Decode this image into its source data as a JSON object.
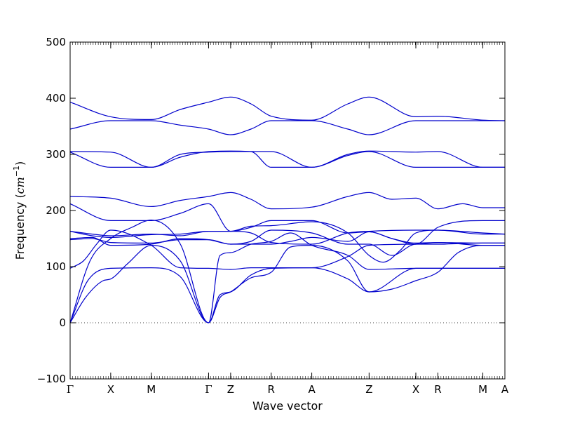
{
  "chart_data": {
    "type": "line",
    "title": "",
    "xlabel": "Wave vector",
    "ylabel_prefix": "Frequency (",
    "ylabel_unit_base": "cm",
    "ylabel_unit_exp": "−1",
    "ylabel_suffix": ")",
    "ylim": [
      -100,
      500
    ],
    "yticks": [
      -100,
      0,
      100,
      200,
      300,
      400,
      500
    ],
    "xlim": [
      0,
      9.86
    ],
    "grid": false,
    "legend": "none",
    "zero_line": "dotted",
    "line_color": "#0000cc",
    "kpoints": [
      {
        "label": "Γ",
        "x": 0.0
      },
      {
        "label": "X",
        "x": 0.92
      },
      {
        "label": "M",
        "x": 1.84
      },
      {
        "label": "Γ",
        "x": 3.14
      },
      {
        "label": "Z",
        "x": 3.64
      },
      {
        "label": "R",
        "x": 4.56
      },
      {
        "label": "A",
        "x": 5.48
      },
      {
        "label": "Z",
        "x": 6.78
      },
      {
        "label": "X",
        "x": 7.84
      },
      {
        "label": "R",
        "x": 8.34
      },
      {
        "label": "M",
        "x": 9.36
      },
      {
        "label": "A",
        "x": 9.86
      }
    ],
    "series": [
      {
        "values": [
          [
            0,
            0
          ],
          [
            0.35,
            45
          ],
          [
            0.75,
            75
          ],
          [
            0.92,
            78
          ],
          [
            1.3,
            105
          ],
          [
            1.84,
            138
          ],
          [
            2.5,
            110
          ],
          [
            3.14,
            0
          ],
          [
            3.4,
            45
          ],
          [
            3.64,
            55
          ],
          [
            4.1,
            80
          ],
          [
            4.56,
            90
          ],
          [
            5.0,
            135
          ],
          [
            5.48,
            138
          ],
          [
            6.3,
            110
          ],
          [
            6.78,
            55
          ],
          [
            7.3,
            60
          ],
          [
            7.84,
            75
          ],
          [
            8.34,
            90
          ],
          [
            8.8,
            125
          ],
          [
            9.36,
            138
          ],
          [
            9.86,
            138
          ]
        ]
      },
      {
        "values": [
          [
            0,
            0
          ],
          [
            0.4,
            75
          ],
          [
            0.92,
            97
          ],
          [
            1.84,
            98
          ],
          [
            2.5,
            82
          ],
          [
            3.14,
            0
          ],
          [
            3.4,
            50
          ],
          [
            3.64,
            55
          ],
          [
            4.1,
            85
          ],
          [
            4.56,
            97
          ],
          [
            5.48,
            98
          ],
          [
            6.3,
            78
          ],
          [
            6.78,
            55
          ],
          [
            7.84,
            97
          ],
          [
            9.86,
            97
          ]
        ]
      },
      {
        "values": [
          [
            0,
            0
          ],
          [
            0.45,
            110
          ],
          [
            0.92,
            150
          ],
          [
            1.4,
            170
          ],
          [
            1.84,
            183
          ],
          [
            2.5,
            140
          ],
          [
            3.14,
            0
          ],
          [
            3.4,
            120
          ],
          [
            3.64,
            125
          ],
          [
            4.1,
            140
          ],
          [
            4.56,
            145
          ],
          [
            5.0,
            160
          ],
          [
            5.48,
            138
          ],
          [
            6.3,
            120
          ],
          [
            6.78,
            95
          ],
          [
            7.84,
            97
          ],
          [
            9.86,
            97
          ]
        ]
      },
      {
        "values": [
          [
            0,
            97
          ],
          [
            0.3,
            110
          ],
          [
            0.6,
            140
          ],
          [
            0.92,
            165
          ],
          [
            1.84,
            138
          ],
          [
            2.5,
            98
          ],
          [
            3.14,
            97
          ],
          [
            3.64,
            95
          ],
          [
            4.1,
            98
          ],
          [
            4.56,
            98
          ],
          [
            5.48,
            98
          ],
          [
            6.3,
            118
          ],
          [
            6.78,
            138
          ],
          [
            7.84,
            140
          ],
          [
            8.34,
            143
          ],
          [
            9.36,
            138
          ],
          [
            9.86,
            138
          ]
        ]
      },
      {
        "values": [
          [
            0,
            148
          ],
          [
            0.5,
            150
          ],
          [
            0.92,
            143
          ],
          [
            1.84,
            142
          ],
          [
            2.5,
            148
          ],
          [
            3.14,
            148
          ],
          [
            3.64,
            140
          ],
          [
            4.1,
            140
          ],
          [
            4.56,
            140
          ],
          [
            5.0,
            145
          ],
          [
            5.48,
            152
          ],
          [
            6.3,
            145
          ],
          [
            6.78,
            162
          ],
          [
            7.3,
            150
          ],
          [
            7.84,
            142
          ],
          [
            8.34,
            143
          ],
          [
            9.36,
            142
          ],
          [
            9.86,
            142
          ]
        ]
      },
      {
        "values": [
          [
            0,
            150
          ],
          [
            0.5,
            152
          ],
          [
            0.92,
            138
          ],
          [
            1.84,
            140
          ],
          [
            2.5,
            150
          ],
          [
            3.14,
            148
          ],
          [
            3.64,
            140
          ],
          [
            4.1,
            145
          ],
          [
            4.56,
            165
          ],
          [
            5.48,
            160
          ],
          [
            6.3,
            140
          ],
          [
            6.78,
            140
          ],
          [
            7.3,
            120
          ],
          [
            7.84,
            140
          ],
          [
            8.34,
            140
          ],
          [
            9.36,
            142
          ],
          [
            9.86,
            142
          ]
        ]
      },
      {
        "values": [
          [
            0,
            163
          ],
          [
            0.5,
            158
          ],
          [
            0.92,
            155
          ],
          [
            1.84,
            158
          ],
          [
            2.5,
            155
          ],
          [
            3.14,
            163
          ],
          [
            3.64,
            163
          ],
          [
            4.1,
            160
          ],
          [
            4.56,
            143
          ],
          [
            5.48,
            140
          ],
          [
            6.3,
            160
          ],
          [
            6.78,
            163
          ],
          [
            7.84,
            165
          ],
          [
            8.34,
            165
          ],
          [
            9.36,
            158
          ],
          [
            9.86,
            158
          ]
        ]
      },
      {
        "values": [
          [
            0,
            163
          ],
          [
            0.5,
            155
          ],
          [
            0.92,
            152
          ],
          [
            1.84,
            157
          ],
          [
            2.5,
            158
          ],
          [
            3.14,
            163
          ],
          [
            3.64,
            163
          ],
          [
            4.1,
            170
          ],
          [
            4.56,
            182
          ],
          [
            5.48,
            182
          ],
          [
            6.3,
            160
          ],
          [
            6.78,
            162
          ],
          [
            7.3,
            150
          ],
          [
            7.84,
            140
          ],
          [
            8.34,
            170
          ],
          [
            9.36,
            182
          ],
          [
            9.86,
            182
          ]
        ]
      },
      {
        "values": [
          [
            0,
            212
          ],
          [
            0.92,
            182
          ],
          [
            1.84,
            182
          ],
          [
            2.5,
            195
          ],
          [
            3.14,
            212
          ],
          [
            3.64,
            163
          ],
          [
            4.1,
            172
          ],
          [
            4.56,
            173
          ],
          [
            5.48,
            180
          ],
          [
            6.3,
            160
          ],
          [
            6.78,
            120
          ],
          [
            7.1,
            108
          ],
          [
            7.5,
            130
          ],
          [
            7.84,
            160
          ],
          [
            8.34,
            165
          ],
          [
            9.36,
            160
          ],
          [
            9.86,
            158
          ]
        ]
      },
      {
        "values": [
          [
            0,
            225
          ],
          [
            0.92,
            222
          ],
          [
            1.84,
            207
          ],
          [
            2.5,
            218
          ],
          [
            3.14,
            225
          ],
          [
            3.64,
            232
          ],
          [
            4.1,
            220
          ],
          [
            4.56,
            203
          ],
          [
            5.48,
            206
          ],
          [
            6.3,
            225
          ],
          [
            6.78,
            232
          ],
          [
            7.3,
            220
          ],
          [
            7.84,
            222
          ],
          [
            8.34,
            203
          ],
          [
            8.9,
            212
          ],
          [
            9.36,
            205
          ],
          [
            9.86,
            205
          ]
        ]
      },
      {
        "values": [
          [
            0,
            305
          ],
          [
            0.92,
            304
          ],
          [
            1.84,
            277
          ],
          [
            2.5,
            295
          ],
          [
            3.14,
            305
          ],
          [
            3.64,
            306
          ],
          [
            4.1,
            305
          ],
          [
            4.56,
            277
          ],
          [
            5.48,
            277
          ],
          [
            6.3,
            300
          ],
          [
            6.78,
            306
          ],
          [
            7.84,
            304
          ],
          [
            8.34,
            305
          ],
          [
            9.36,
            277
          ],
          [
            9.86,
            277
          ]
        ]
      },
      {
        "values": [
          [
            0,
            304
          ],
          [
            0.92,
            277
          ],
          [
            1.84,
            277
          ],
          [
            2.5,
            300
          ],
          [
            3.14,
            304
          ],
          [
            3.64,
            305
          ],
          [
            4.56,
            305
          ],
          [
            5.48,
            277
          ],
          [
            6.3,
            298
          ],
          [
            6.78,
            305
          ],
          [
            7.84,
            277
          ],
          [
            8.34,
            277
          ],
          [
            9.36,
            277
          ],
          [
            9.86,
            277
          ]
        ]
      },
      {
        "values": [
          [
            0,
            345
          ],
          [
            0.92,
            360
          ],
          [
            1.84,
            360
          ],
          [
            2.5,
            352
          ],
          [
            3.14,
            345
          ],
          [
            3.64,
            335
          ],
          [
            4.1,
            345
          ],
          [
            4.56,
            360
          ],
          [
            5.48,
            360
          ],
          [
            6.3,
            345
          ],
          [
            6.78,
            335
          ],
          [
            7.84,
            360
          ],
          [
            8.34,
            360
          ],
          [
            9.36,
            360
          ],
          [
            9.86,
            360
          ]
        ]
      },
      {
        "values": [
          [
            0,
            393
          ],
          [
            0.92,
            367
          ],
          [
            1.84,
            362
          ],
          [
            2.5,
            380
          ],
          [
            3.14,
            393
          ],
          [
            3.64,
            402
          ],
          [
            4.1,
            390
          ],
          [
            4.56,
            368
          ],
          [
            5.48,
            361
          ],
          [
            6.3,
            390
          ],
          [
            6.78,
            402
          ],
          [
            7.84,
            367
          ],
          [
            8.34,
            368
          ],
          [
            9.36,
            361
          ],
          [
            9.86,
            360
          ]
        ]
      }
    ]
  }
}
